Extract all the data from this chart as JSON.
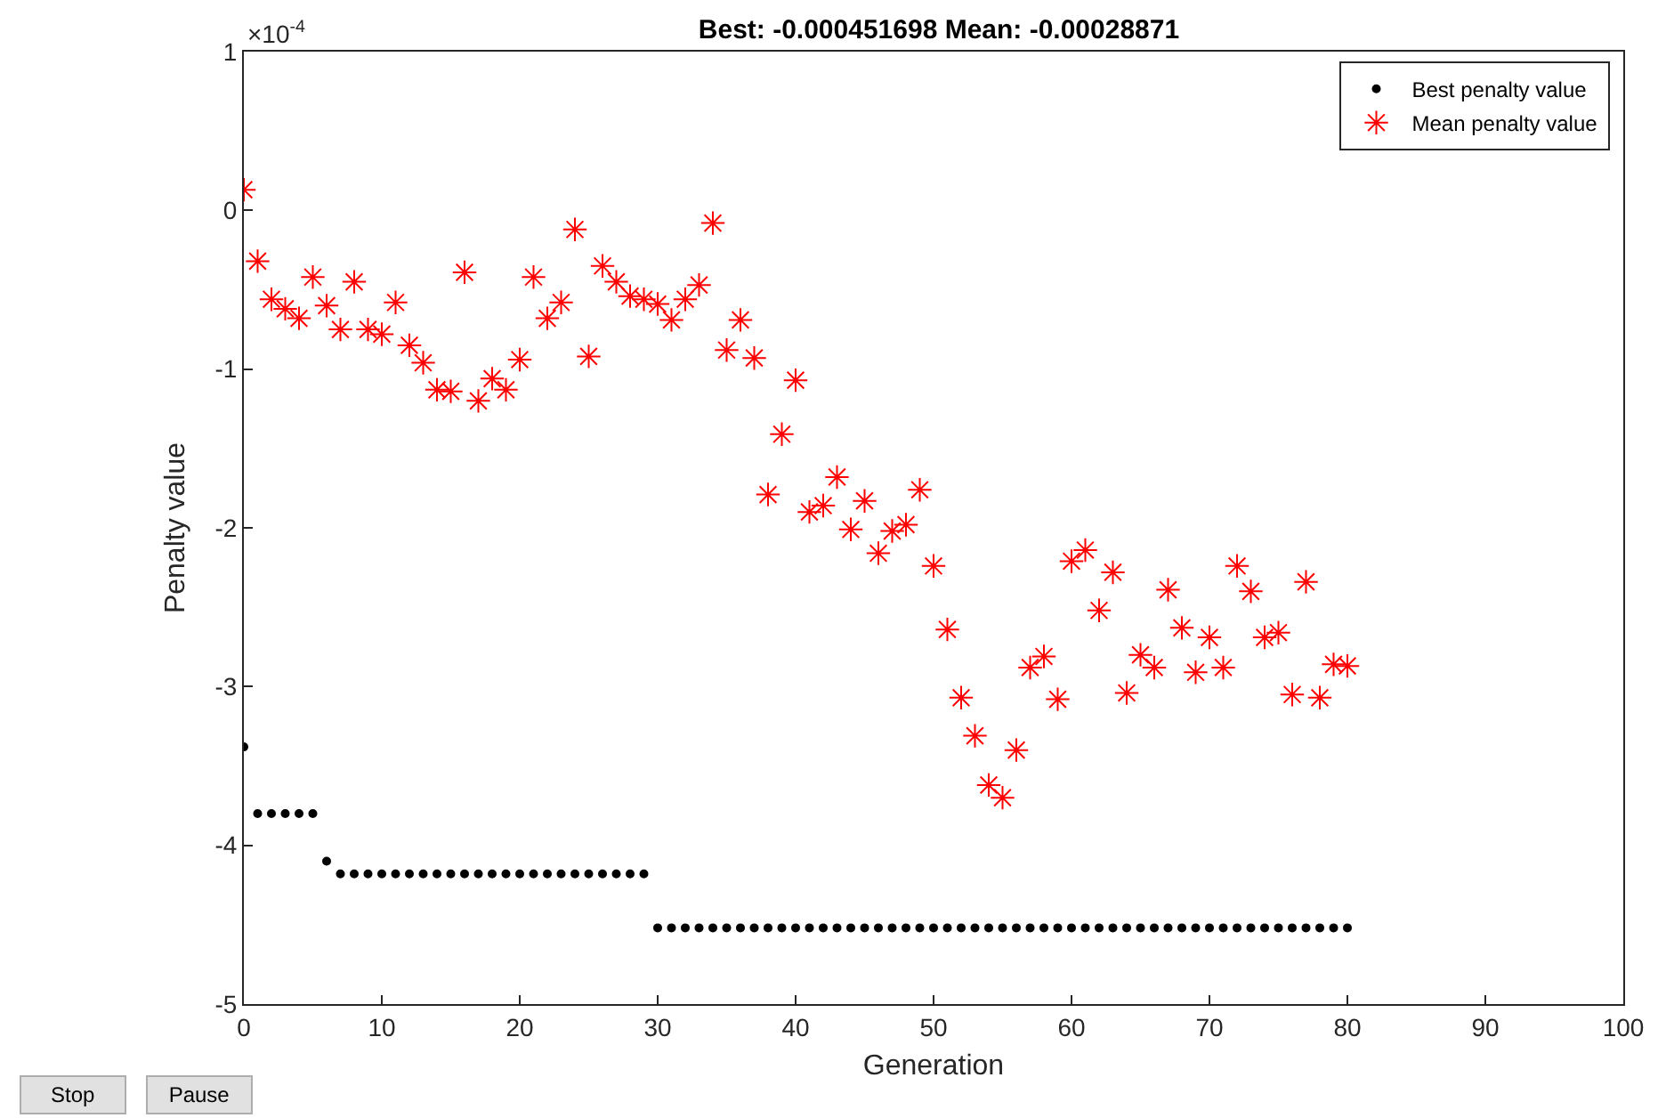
{
  "chart_data": {
    "type": "scatter",
    "title": "Best: -0.000451698 Mean: -0.00028871",
    "xlabel": "Generation",
    "ylabel": "Penalty value",
    "annotations": [
      "×10$^{-4}$",
      "Stop",
      "Pause"
    ],
    "x": [
      0,
      1,
      2,
      3,
      4,
      5,
      6,
      7,
      8,
      9,
      10,
      11,
      12,
      13,
      14,
      15,
      16,
      17,
      18,
      19,
      20,
      21,
      22,
      23,
      24,
      25,
      26,
      27,
      28,
      29,
      30,
      31,
      32,
      33,
      34,
      35,
      36,
      37,
      38,
      39,
      40,
      41,
      42,
      43,
      44,
      45,
      46,
      47,
      48,
      49,
      50,
      51,
      52,
      53,
      54,
      55,
      56,
      57,
      58,
      59,
      60,
      61,
      62,
      63,
      64,
      65,
      66,
      67,
      68,
      69,
      70,
      71,
      72,
      73,
      74,
      75,
      76,
      77,
      78,
      79,
      80
    ],
    "series": [
      {
        "name": "Best penalty value",
        "color": "#000000",
        "marker": "circle",
        "values": [
          -3.38,
          -3.8,
          -3.8,
          -3.8,
          -3.8,
          -3.8,
          -4.1,
          -4.18,
          -4.18,
          -4.18,
          -4.18,
          -4.18,
          -4.18,
          -4.18,
          -4.18,
          -4.18,
          -4.18,
          -4.18,
          -4.18,
          -4.18,
          -4.18,
          -4.18,
          -4.18,
          -4.18,
          -4.18,
          -4.18,
          -4.18,
          -4.18,
          -4.18,
          -4.18,
          -4.52,
          -4.52,
          -4.52,
          -4.52,
          -4.52,
          -4.52,
          -4.52,
          -4.52,
          -4.52,
          -4.52,
          -4.52,
          -4.52,
          -4.52,
          -4.52,
          -4.52,
          -4.52,
          -4.52,
          -4.52,
          -4.52,
          -4.52,
          -4.52,
          -4.52,
          -4.52,
          -4.52,
          -4.52,
          -4.52,
          -4.52,
          -4.52,
          -4.52,
          -4.52,
          -4.52,
          -4.52,
          -4.52,
          -4.52,
          -4.52,
          -4.52,
          -4.52,
          -4.52,
          -4.52,
          -4.52,
          -4.52,
          -4.52,
          -4.52,
          -4.52,
          -4.52,
          -4.52,
          -4.52,
          -4.52,
          -4.52,
          -4.52,
          -4.52
        ]
      },
      {
        "name": "Mean penalty value",
        "color": "#ff0000",
        "marker": "cross",
        "values": [
          0.13,
          -0.32,
          -0.56,
          -0.62,
          -0.68,
          -0.42,
          -0.6,
          -0.75,
          -0.45,
          -0.75,
          -0.78,
          -0.58,
          -0.85,
          -0.96,
          -1.13,
          -1.14,
          -0.39,
          -1.2,
          -1.06,
          -1.13,
          -0.94,
          -0.42,
          -0.68,
          -0.58,
          -0.12,
          -0.92,
          -0.35,
          -0.45,
          -0.54,
          -0.56,
          -0.59,
          -0.69,
          -0.56,
          -0.47,
          -0.08,
          -0.88,
          -0.69,
          -0.93,
          -1.79,
          -1.41,
          -1.07,
          -1.9,
          -1.86,
          -1.68,
          -2.01,
          -1.83,
          -2.16,
          -2.02,
          -1.98,
          -1.76,
          -2.24,
          -2.64,
          -3.07,
          -3.31,
          -3.62,
          -3.7,
          -3.4,
          -2.88,
          -2.81,
          -3.08,
          -2.21,
          -2.14,
          -2.52,
          -2.28,
          -3.04,
          -2.8,
          -2.88,
          -2.39,
          -2.63,
          -2.91,
          -2.69,
          -2.88,
          -2.24,
          -2.4,
          -2.69,
          -2.66,
          -3.05,
          -2.34,
          -3.07,
          -2.86,
          -2.87
        ]
      }
    ],
    "xlim": [
      0,
      100
    ],
    "xticks": [
      0,
      10,
      20,
      30,
      40,
      50,
      60,
      70,
      80,
      90,
      100
    ],
    "ylim": [
      -5,
      1
    ],
    "yticks": [
      -5,
      -4,
      -3,
      -2,
      -1,
      0,
      1
    ],
    "legend": "top right"
  }
}
